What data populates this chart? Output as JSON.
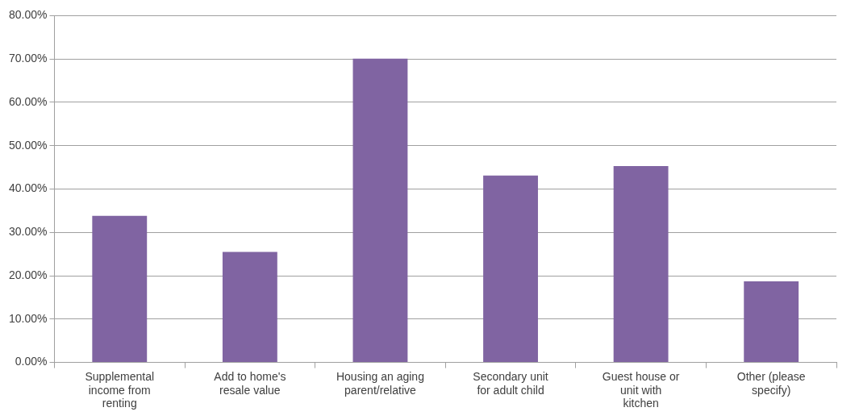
{
  "chart_data": {
    "type": "bar",
    "categories": [
      "Supplemental income from renting",
      "Add to home's resale value",
      "Housing an aging parent/relative",
      "Secondary unit for adult child",
      "Guest house or unit with kitchen",
      "Other (please specify)"
    ],
    "values": [
      33.8,
      25.5,
      70.1,
      43.1,
      45.3,
      18.7
    ],
    "color": "#8064a2",
    "ylim": [
      0,
      80
    ],
    "yticks": [
      {
        "value": 0,
        "label": "0.00%"
      },
      {
        "value": 10,
        "label": "10.00%"
      },
      {
        "value": 20,
        "label": "20.00%"
      },
      {
        "value": 30,
        "label": "30.00%"
      },
      {
        "value": 40,
        "label": "40.00%"
      },
      {
        "value": 50,
        "label": "50.00%"
      },
      {
        "value": 60,
        "label": "60.00%"
      },
      {
        "value": 70,
        "label": "70.00%"
      },
      {
        "value": 80,
        "label": "80.00%"
      }
    ],
    "grid": "y",
    "legend": false
  }
}
